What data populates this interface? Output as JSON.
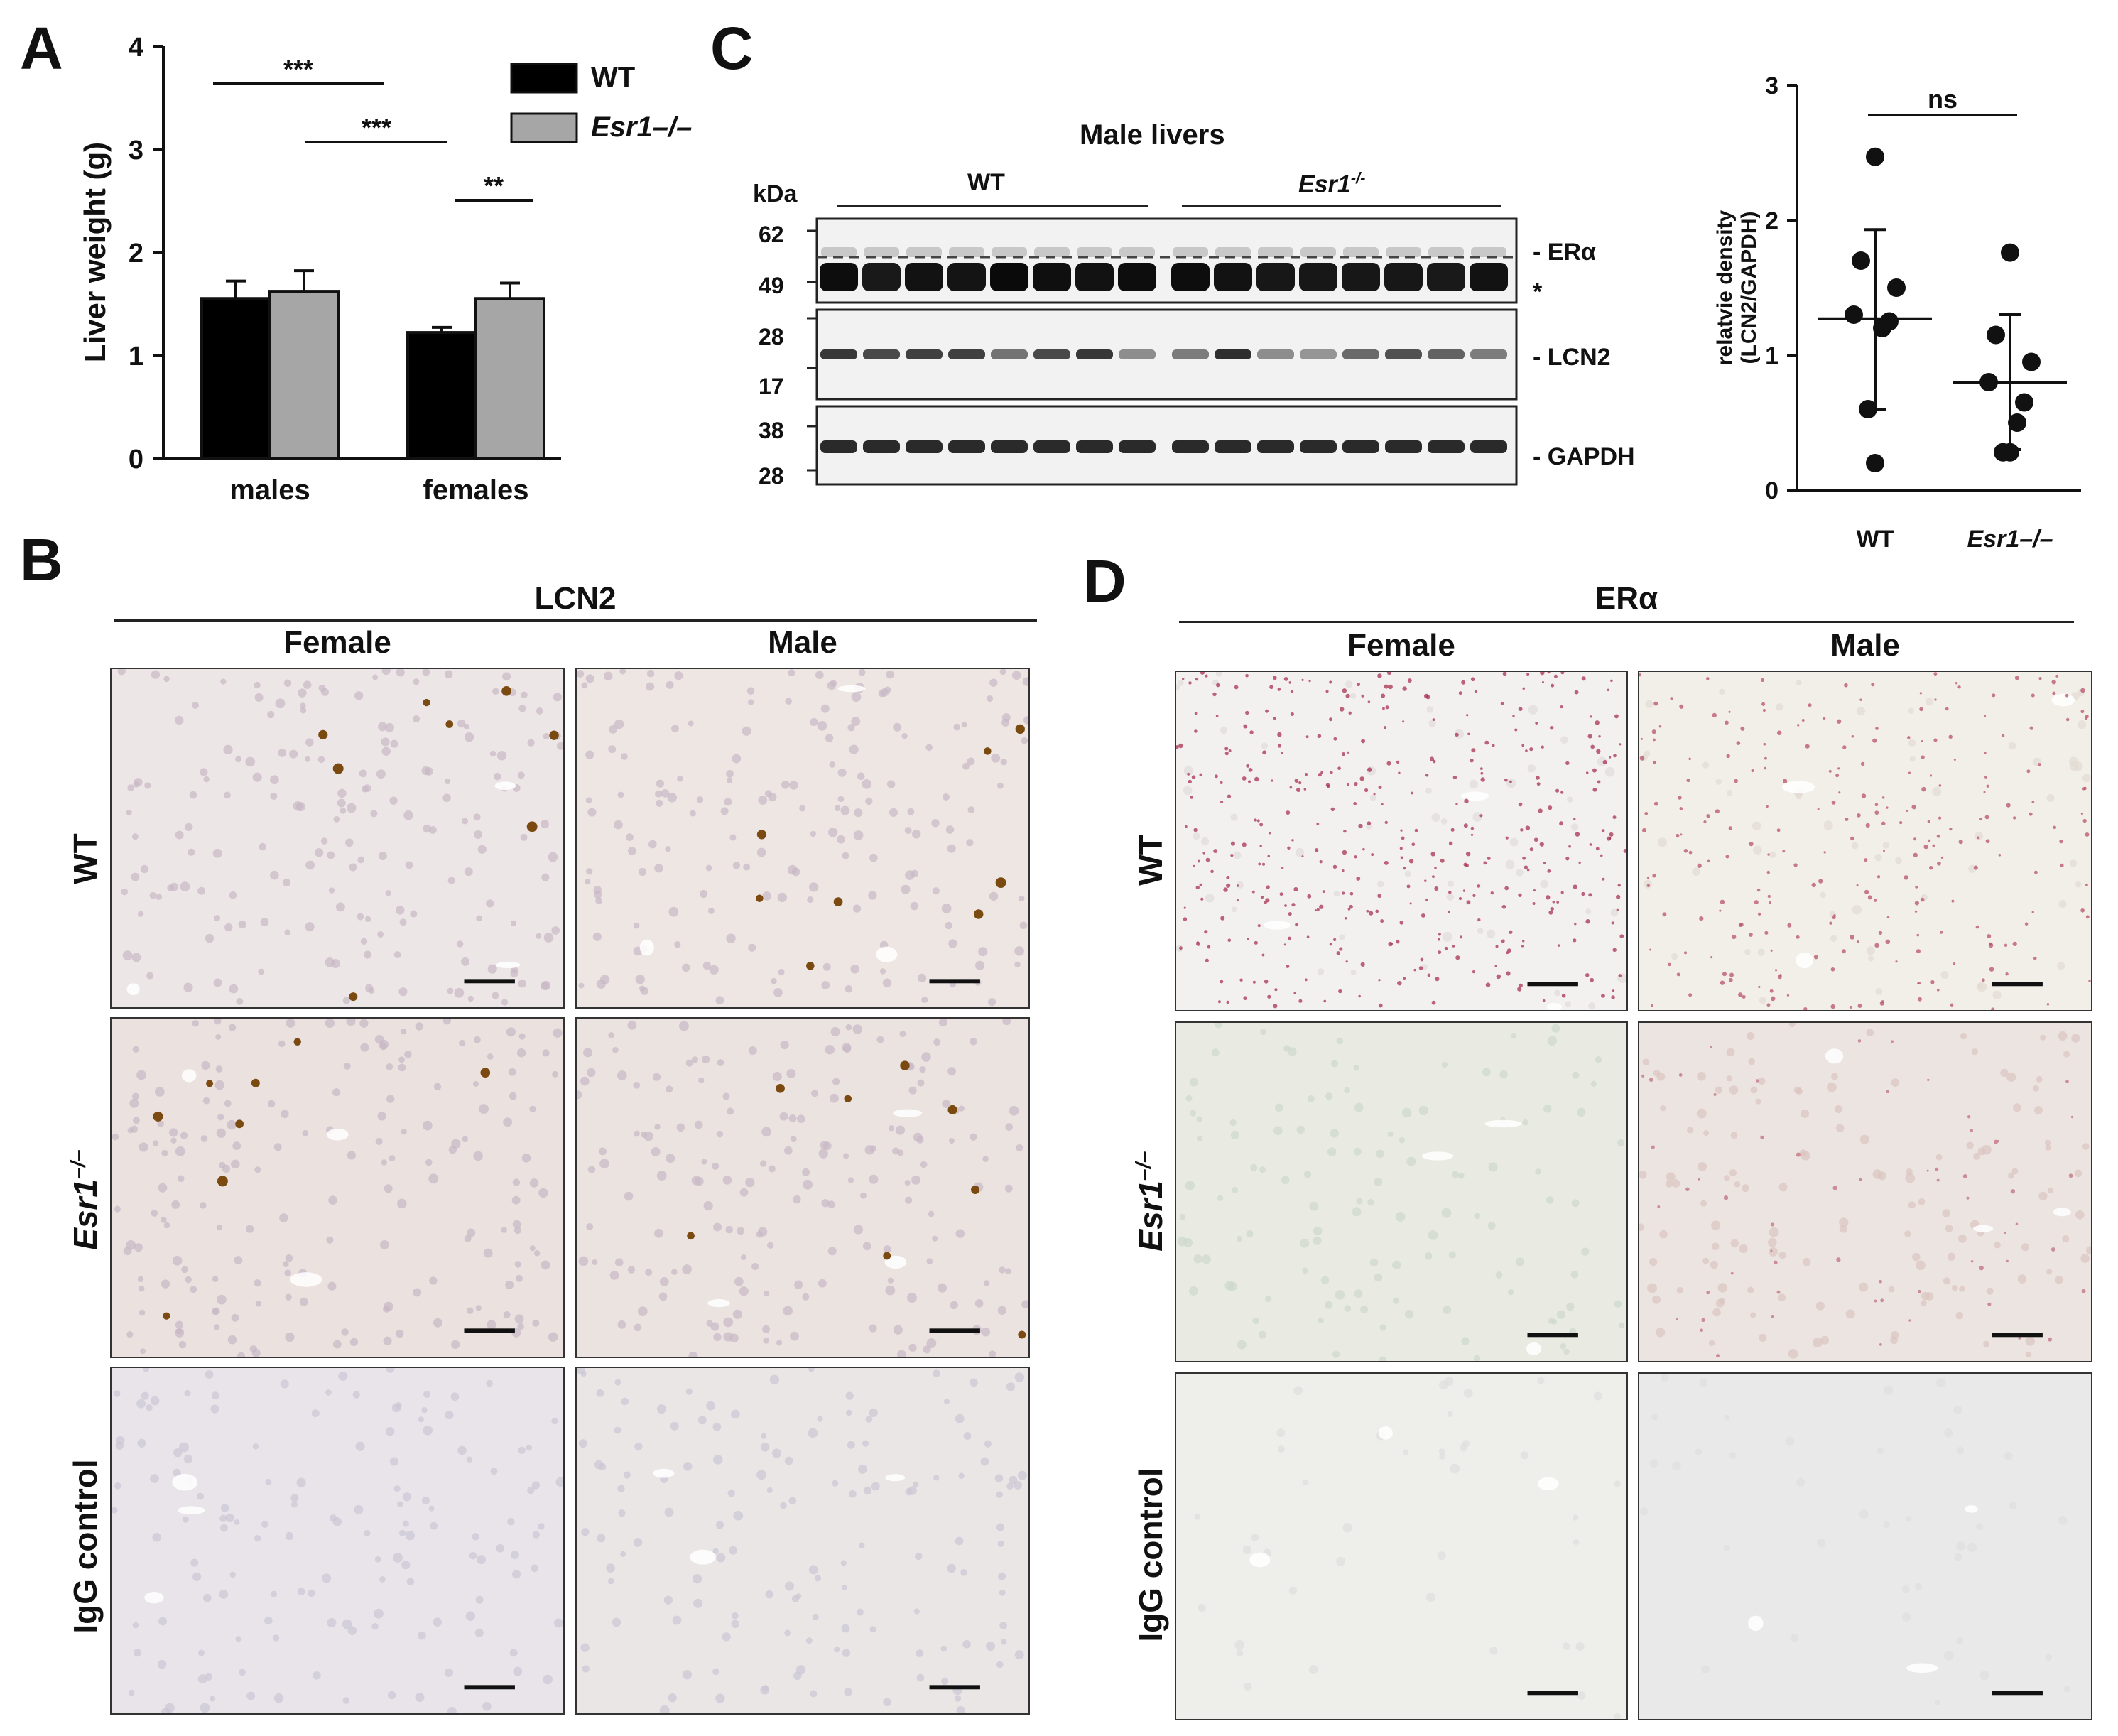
{
  "panels": {
    "a": {
      "letter": "A"
    },
    "b": {
      "letter": "B"
    },
    "c": {
      "letter": "C"
    },
    "d": {
      "letter": "D"
    }
  },
  "chart_data": [
    {
      "type": "bar",
      "panel": "A",
      "ylabel": "Liver weight (g)",
      "ylim": [
        0,
        4
      ],
      "yticks": [
        "0",
        "1",
        "2",
        "3",
        "4"
      ],
      "categories": [
        "males",
        "females"
      ],
      "series": [
        {
          "name": "WT",
          "values": [
            1.55,
            1.22
          ],
          "errors": [
            0.17,
            0.05
          ],
          "color": "#000000"
        },
        {
          "name": "Esr1–/–",
          "values": [
            1.62,
            1.55
          ],
          "errors": [
            0.2,
            0.15
          ],
          "color": "#a6a6a6"
        }
      ],
      "significance": [
        {
          "label": "***",
          "from": "males WT",
          "to": "females WT"
        },
        {
          "label": "***",
          "from": "males Esr1–/–",
          "to": "females WT"
        },
        {
          "label": "**",
          "from": "females WT",
          "to": "females Esr1–/–"
        }
      ],
      "legend": [
        "WT",
        "Esr1–/–"
      ],
      "legend_position": "top-right"
    },
    {
      "type": "scatter",
      "panel": "C",
      "ylabel": "relatvie density (LCN2/GAPDH)",
      "ylabel_lines": [
        "relatvie density",
        "(LCN2/GAPDH)"
      ],
      "ylim": [
        0,
        3
      ],
      "yticks": [
        "0",
        "1",
        "2",
        "3"
      ],
      "categories": [
        "WT",
        "Esr1–/–"
      ],
      "series": [
        {
          "category": "WT",
          "points": [
            2.47,
            1.7,
            1.5,
            1.3,
            1.25,
            1.2,
            0.6,
            0.2
          ],
          "mean": 1.27,
          "sd_upper": 1.93,
          "sd_lower": 0.6
        },
        {
          "category": "Esr1–/–",
          "points": [
            1.76,
            1.15,
            0.95,
            0.8,
            0.65,
            0.5,
            0.28,
            0.28
          ],
          "mean": 0.8,
          "sd_upper": 1.3,
          "sd_lower": 0.3
        }
      ],
      "significance": [
        {
          "label": "ns",
          "from": "WT",
          "to": "Esr1–/–"
        }
      ]
    }
  ],
  "blot": {
    "title": "Male livers",
    "kda_label": "kDa",
    "group_wt": "WT",
    "group_esr1": "Esr1",
    "group_esr1_sup": "-/-",
    "markers": {
      "top": [
        "62",
        "49"
      ],
      "middle": [
        "28",
        "17"
      ],
      "bottom": [
        "38",
        "28"
      ]
    },
    "bands": {
      "era": "- ERα",
      "star": "*",
      "lcn2": "- LCN2",
      "gapdh": "- GAPDH"
    }
  },
  "panel_b": {
    "stain": "LCN2",
    "columns": [
      "Female",
      "Male"
    ],
    "rows": [
      "WT",
      "Esr1",
      "IgG control"
    ],
    "row_sup": "–/–"
  },
  "panel_d": {
    "stain": "ERα",
    "columns": [
      "Female",
      "Male"
    ],
    "rows": [
      "WT",
      "Esr1",
      "IgG control"
    ],
    "row_sup": "–/–"
  }
}
